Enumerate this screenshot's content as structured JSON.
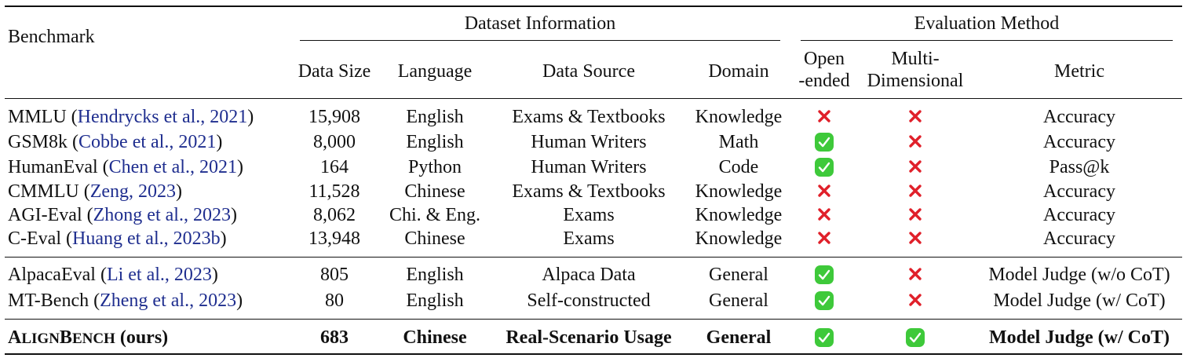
{
  "header": {
    "benchmark": "Benchmark",
    "group_dataset": "Dataset Information",
    "group_eval": "Evaluation Method",
    "data_size": "Data Size",
    "language": "Language",
    "data_source": "Data Source",
    "domain": "Domain",
    "open_ended_1": "Open",
    "open_ended_2": "-ended",
    "multi_dim_1": "Multi-",
    "multi_dim_2": "Dimensional",
    "metric": "Metric"
  },
  "rows": [
    {
      "name": "MMLU",
      "cite": "Hendrycks et al., 2021",
      "size": "15,908",
      "language": "English",
      "source": "Exams & Textbooks",
      "domain": "Knowledge",
      "open": "cross",
      "multi": "cross",
      "metric": "Accuracy"
    },
    {
      "name": "GSM8k",
      "cite": "Cobbe et al., 2021",
      "size": "8,000",
      "language": "English",
      "source": "Human Writers",
      "domain": "Math",
      "open": "check",
      "multi": "cross",
      "metric": "Accuracy"
    },
    {
      "name": "HumanEval",
      "cite": "Chen et al., 2021",
      "size": "164",
      "language": "Python",
      "source": "Human Writers",
      "domain": "Code",
      "open": "check",
      "multi": "cross",
      "metric": "Pass@k"
    },
    {
      "name": "CMMLU",
      "cite": "Zeng, 2023",
      "size": "11,528",
      "language": "Chinese",
      "source": "Exams & Textbooks",
      "domain": "Knowledge",
      "open": "cross",
      "multi": "cross",
      "metric": "Accuracy"
    },
    {
      "name": "AGI-Eval",
      "cite": "Zhong et al., 2023",
      "size": "8,062",
      "language": "Chi. & Eng.",
      "source": "Exams",
      "domain": "Knowledge",
      "open": "cross",
      "multi": "cross",
      "metric": "Accuracy"
    },
    {
      "name": "C-Eval",
      "cite": "Huang et al., 2023b",
      "size": "13,948",
      "language": "Chinese",
      "source": "Exams",
      "domain": "Knowledge",
      "open": "cross",
      "multi": "cross",
      "metric": "Accuracy"
    },
    {
      "name": "AlpacaEval",
      "cite": "Li et al., 2023",
      "size": "805",
      "language": "English",
      "source": "Alpaca Data",
      "domain": "General",
      "open": "check",
      "multi": "cross",
      "metric": "Model Judge (w/o CoT)"
    },
    {
      "name": "MT-Bench",
      "cite": "Zheng et al., 2023",
      "size": "80",
      "language": "English",
      "source": "Self-constructed",
      "domain": "General",
      "open": "check",
      "multi": "cross",
      "metric": "Model Judge (w/ CoT)"
    }
  ],
  "ours": {
    "name_a": "A",
    "name_b": "LIGN",
    "name_c": "B",
    "name_d": "ENCH",
    "suffix": " (ours)",
    "size": "683",
    "language": "Chinese",
    "source": "Real-Scenario Usage",
    "domain": "General",
    "open": "check",
    "multi": "check",
    "metric": "Model Judge (w/ CoT)"
  },
  "colors": {
    "cite": "#1f2e8f",
    "cross": "#e0202a",
    "check": "#3ec93a"
  }
}
